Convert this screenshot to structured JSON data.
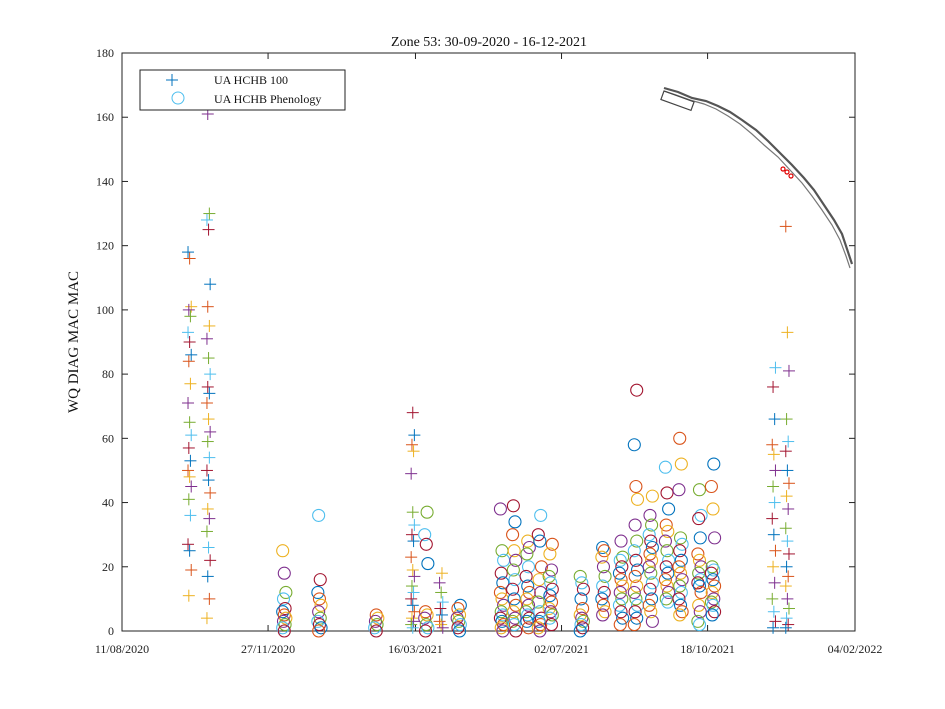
{
  "chart_data": {
    "type": "scatter",
    "title": "Zone 53: 30-09-2020 - 16-12-2021",
    "ylabel": "WQ DIAG MAC MAC",
    "xlabel": "",
    "xlim": [
      "2020-08-11",
      "2022-02-04"
    ],
    "ylim": [
      0,
      180
    ],
    "xticks": [
      "11/08/2020",
      "27/11/2020",
      "16/03/2021",
      "02/07/2021",
      "18/10/2021",
      "04/02/2022"
    ],
    "yticks": [
      "0",
      "20",
      "40",
      "60",
      "80",
      "100",
      "120",
      "140",
      "160",
      "180"
    ],
    "legend_position": "top-left",
    "grid": false,
    "palette": [
      "#0072bd",
      "#d95319",
      "#edb120",
      "#7e2f8e",
      "#77ac30",
      "#4dbeee",
      "#a2142f"
    ],
    "series": [
      {
        "name": "UA HCHB 100",
        "marker": "plus",
        "groups": [
          {
            "date": "2020-09-30",
            "values": [
              118,
              116,
              101,
              100,
              98,
              93,
              90,
              86,
              84,
              77,
              71,
              65,
              61,
              57,
              53,
              50,
              48,
              45,
              41,
              36,
              27,
              25,
              19,
              11
            ]
          },
          {
            "date": "2020-10-14",
            "values": [
              161,
              130,
              128,
              125,
              108,
              101,
              95,
              91,
              85,
              80,
              76,
              74,
              71,
              66,
              62,
              59,
              54,
              50,
              47,
              43,
              38,
              35,
              31,
              26,
              22,
              17,
              10,
              4
            ]
          },
          {
            "date": "2021-03-14",
            "values": [
              68,
              61,
              58,
              56,
              49,
              37,
              33,
              30,
              28,
              23,
              19,
              17,
              14,
              12,
              10,
              8,
              6,
              4,
              3,
              2,
              1
            ]
          },
          {
            "date": "2021-04-04",
            "values": [
              18,
              15,
              12,
              9,
              7,
              5,
              3,
              2,
              1
            ]
          },
          {
            "date": "2021-12-06",
            "values": [
              82,
              76,
              66,
              58,
              55,
              50,
              45,
              40,
              35,
              30,
              25,
              20,
              15,
              10,
              6,
              3,
              1
            ]
          },
          {
            "date": "2021-12-16",
            "values": [
              126,
              93,
              81,
              66,
              59,
              56,
              50,
              46,
              42,
              38,
              32,
              28,
              24,
              20,
              17,
              14,
              10,
              7,
              4,
              2,
              1
            ]
          }
        ]
      },
      {
        "name": "UA HCHB Phenology",
        "marker": "circle",
        "groups": [
          {
            "date": "2020-12-09",
            "values": [
              25,
              18,
              12,
              10,
              7,
              6,
              5,
              4,
              3,
              2,
              1,
              0
            ]
          },
          {
            "date": "2021-01-04",
            "values": [
              36,
              16,
              12,
              10,
              8,
              6,
              4,
              3,
              2,
              1,
              0
            ]
          },
          {
            "date": "2021-02-15",
            "values": [
              5,
              4,
              3,
              2,
              1,
              0
            ]
          },
          {
            "date": "2021-03-24",
            "values": [
              37,
              30,
              27,
              21,
              6,
              5,
              4,
              2,
              1,
              0
            ]
          },
          {
            "date": "2021-04-17",
            "values": [
              8,
              7,
              5,
              4,
              3,
              2,
              1,
              0
            ]
          },
          {
            "date": "2021-05-19",
            "values": [
              38,
              25,
              22,
              18,
              15,
              12,
              10,
              8,
              6,
              5,
              4,
              3,
              2,
              1,
              0
            ]
          },
          {
            "date": "2021-05-28",
            "values": [
              39,
              34,
              30,
              25,
              22,
              19,
              16,
              13,
              10,
              8,
              6,
              4,
              3,
              2,
              0
            ]
          },
          {
            "date": "2021-06-07",
            "values": [
              28,
              26,
              24,
              20,
              17,
              14,
              12,
              10,
              8,
              6,
              5,
              4,
              3,
              1
            ]
          },
          {
            "date": "2021-06-16",
            "values": [
              36,
              30,
              28,
              20,
              16,
              12,
              9,
              6,
              4,
              3,
              2,
              1,
              0
            ]
          },
          {
            "date": "2021-06-24",
            "values": [
              27,
              24,
              19,
              17,
              15,
              13,
              11,
              9,
              7,
              6,
              5,
              4,
              2
            ]
          },
          {
            "date": "2021-07-17",
            "values": [
              17,
              15,
              13,
              10,
              7,
              5,
              4,
              3,
              2,
              1,
              0
            ]
          },
          {
            "date": "2021-08-02",
            "values": [
              26,
              25,
              23,
              20,
              17,
              14,
              12,
              10,
              8,
              6,
              5
            ]
          },
          {
            "date": "2021-08-15",
            "values": [
              28,
              23,
              22,
              20,
              18,
              16,
              14,
              12,
              10,
              8,
              6,
              4,
              2
            ]
          },
          {
            "date": "2021-08-26",
            "values": [
              75,
              58,
              45,
              41,
              33,
              28,
              25,
              22,
              19,
              17,
              14,
              12,
              10,
              8,
              6,
              4,
              2
            ]
          },
          {
            "date": "2021-09-06",
            "values": [
              42,
              36,
              33,
              30,
              28,
              26,
              24,
              22,
              20,
              18,
              15,
              13,
              10,
              8,
              6,
              3
            ]
          },
          {
            "date": "2021-09-18",
            "values": [
              51,
              43,
              38,
              33,
              31,
              28,
              25,
              22,
              20,
              18,
              16,
              14,
              12,
              10,
              9
            ]
          },
          {
            "date": "2021-09-28",
            "values": [
              60,
              52,
              44,
              29,
              27,
              25,
              22,
              20,
              18,
              16,
              14,
              12,
              10,
              8,
              6,
              5
            ]
          },
          {
            "date": "2021-10-12",
            "values": [
              44,
              36,
              35,
              29,
              24,
              22,
              20,
              18,
              16,
              15,
              14,
              12,
              8,
              6,
              3,
              2
            ]
          },
          {
            "date": "2021-10-22",
            "values": [
              52,
              45,
              38,
              29,
              20,
              19,
              18,
              16,
              14,
              12,
              10,
              9,
              8,
              6,
              5
            ]
          }
        ]
      }
    ]
  }
}
